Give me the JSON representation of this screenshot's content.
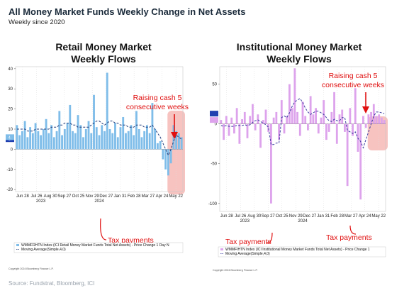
{
  "header": {
    "title": "All Money Market Funds Weekly Change in Net Assets",
    "subtitle": "Weekly since 2020"
  },
  "source": "Source: Fundstrat, Bloomberg, ICI",
  "colors": {
    "retail_bar": "#7fbde9",
    "retail_ma": "#1f3a7a",
    "inst_bar": "#dda3ec",
    "inst_ma": "#3a3aa0",
    "highlight": "#f6b8b5",
    "annotation": "#e01010"
  },
  "chart_data": [
    {
      "type": "bar",
      "title_line1": "Retail Money Market",
      "title_line2": "Weekly Flows",
      "x_tick_labels": [
        "Jun 28",
        "Jul 26",
        "Aug 30",
        "Sep 27",
        "Oct 25",
        "Nov 29",
        "Dec 27",
        "Jan 31",
        "Feb 28",
        "Mar 27",
        "Apr 24",
        "May 22"
      ],
      "year_labels": [
        {
          "label": "2023",
          "index": 9
        },
        {
          "label": "2024",
          "index": 31
        }
      ],
      "y_ticks": [
        40,
        30,
        20,
        10,
        0,
        -10,
        -20
      ],
      "ylim": [
        -21,
        41
      ],
      "values": [
        12,
        7,
        9,
        14,
        6,
        11,
        8,
        13,
        9,
        7,
        10,
        15,
        8,
        12,
        6,
        9,
        19,
        7,
        10,
        13,
        22,
        9,
        8,
        17,
        12,
        6,
        10,
        14,
        8,
        27,
        11,
        7,
        12,
        9,
        38,
        10,
        8,
        13,
        6,
        11,
        16,
        8,
        9,
        12,
        7,
        19,
        10,
        6,
        9,
        12,
        8,
        23,
        10,
        3,
        4,
        -5,
        -10,
        -13,
        -7,
        12,
        9,
        8,
        6
      ],
      "moving_average": [
        10,
        10,
        10,
        10,
        9,
        9,
        9,
        10,
        10,
        10,
        10,
        10,
        10,
        11,
        11,
        11,
        12,
        12,
        13,
        13,
        13,
        12,
        12,
        11,
        11,
        11,
        11,
        11,
        12,
        13,
        14,
        14,
        13,
        12,
        13,
        14,
        14,
        13,
        13,
        12,
        12,
        12,
        11,
        11,
        11,
        12,
        12,
        12,
        11,
        11,
        11,
        12,
        10,
        8,
        6,
        3,
        0,
        -3,
        0,
        4,
        7,
        6,
        5
      ],
      "highlight_indices": [
        58,
        62
      ],
      "legend": [
        "WMMFRHTN Index (ICI Retail Money Market Funds Total Net Assets) - Price Change 1 Day N",
        "Moving Average(Simple,4,0)"
      ],
      "axis_marker_labels": [
        "5.",
        "4."
      ],
      "annotations": {
        "raising_line1": "Raising cash 5",
        "raising_line2": "consecutive weeks",
        "tax_label": "Tax payments"
      },
      "copyright": "Copyright 2024 Bloomberg Finance L.P."
    },
    {
      "type": "bar",
      "title_line1": "Institutional Money Market",
      "title_line2": "Weekly Flows",
      "x_tick_labels": [
        "Jun 28",
        "Jul 26",
        "Aug 30",
        "Sep 27",
        "Oct 25",
        "Nov 29",
        "Dec 27",
        "Jan 31",
        "Feb 28",
        "Mar 27",
        "Apr 24",
        "May 22"
      ],
      "year_labels": [
        {
          "label": "2023",
          "index": 9
        },
        {
          "label": "2024",
          "index": 31
        }
      ],
      "y_ticks": [
        50,
        0,
        -50,
        -100
      ],
      "ylim": [
        -110,
        72
      ],
      "values": [
        5,
        -20,
        10,
        -15,
        8,
        -12,
        20,
        -25,
        6,
        15,
        -18,
        10,
        25,
        -8,
        12,
        -30,
        5,
        18,
        -10,
        -100,
        8,
        15,
        -20,
        30,
        -12,
        10,
        50,
        20,
        70,
        15,
        -15,
        28,
        10,
        -8,
        35,
        12,
        20,
        -12,
        8,
        30,
        -20,
        -10,
        15,
        40,
        -25,
        12,
        18,
        -10,
        -78,
        20,
        -15,
        45,
        -35,
        -95,
        10,
        -5,
        12,
        15,
        25,
        10,
        12,
        8,
        5
      ],
      "moving_average": [
        -2,
        -3,
        -2,
        -3,
        -3,
        -3,
        -2,
        -2,
        -2,
        -1,
        -2,
        -1,
        2,
        4,
        5,
        3,
        1,
        -1,
        -4,
        -26,
        -26,
        -24,
        -24,
        8,
        10,
        8,
        14,
        22,
        28,
        30,
        32,
        27,
        20,
        15,
        12,
        14,
        16,
        16,
        14,
        12,
        8,
        4,
        3,
        6,
        4,
        4,
        8,
        8,
        -8,
        -10,
        -12,
        -10,
        -18,
        -22,
        -30,
        -20,
        -10,
        0,
        10,
        15,
        15,
        14,
        13
      ],
      "highlight_indices": [
        57,
        62
      ],
      "legend": [
        "WMMFIHTN Index (ICI Institutional Money Market Funds Total Net Assets) - Price Change 1",
        "Moving Average(Simple,4,0)"
      ],
      "axis_marker_labels": [
        "",
        ""
      ],
      "annotations": {
        "raising_line1": "Raising cash 5",
        "raising_line2": "consecutive weeks",
        "tax_label_1": "Tax payments",
        "tax_label_2": "Tax payments"
      },
      "copyright": "Copyright 2024 Bloomberg Finance L.P."
    }
  ]
}
